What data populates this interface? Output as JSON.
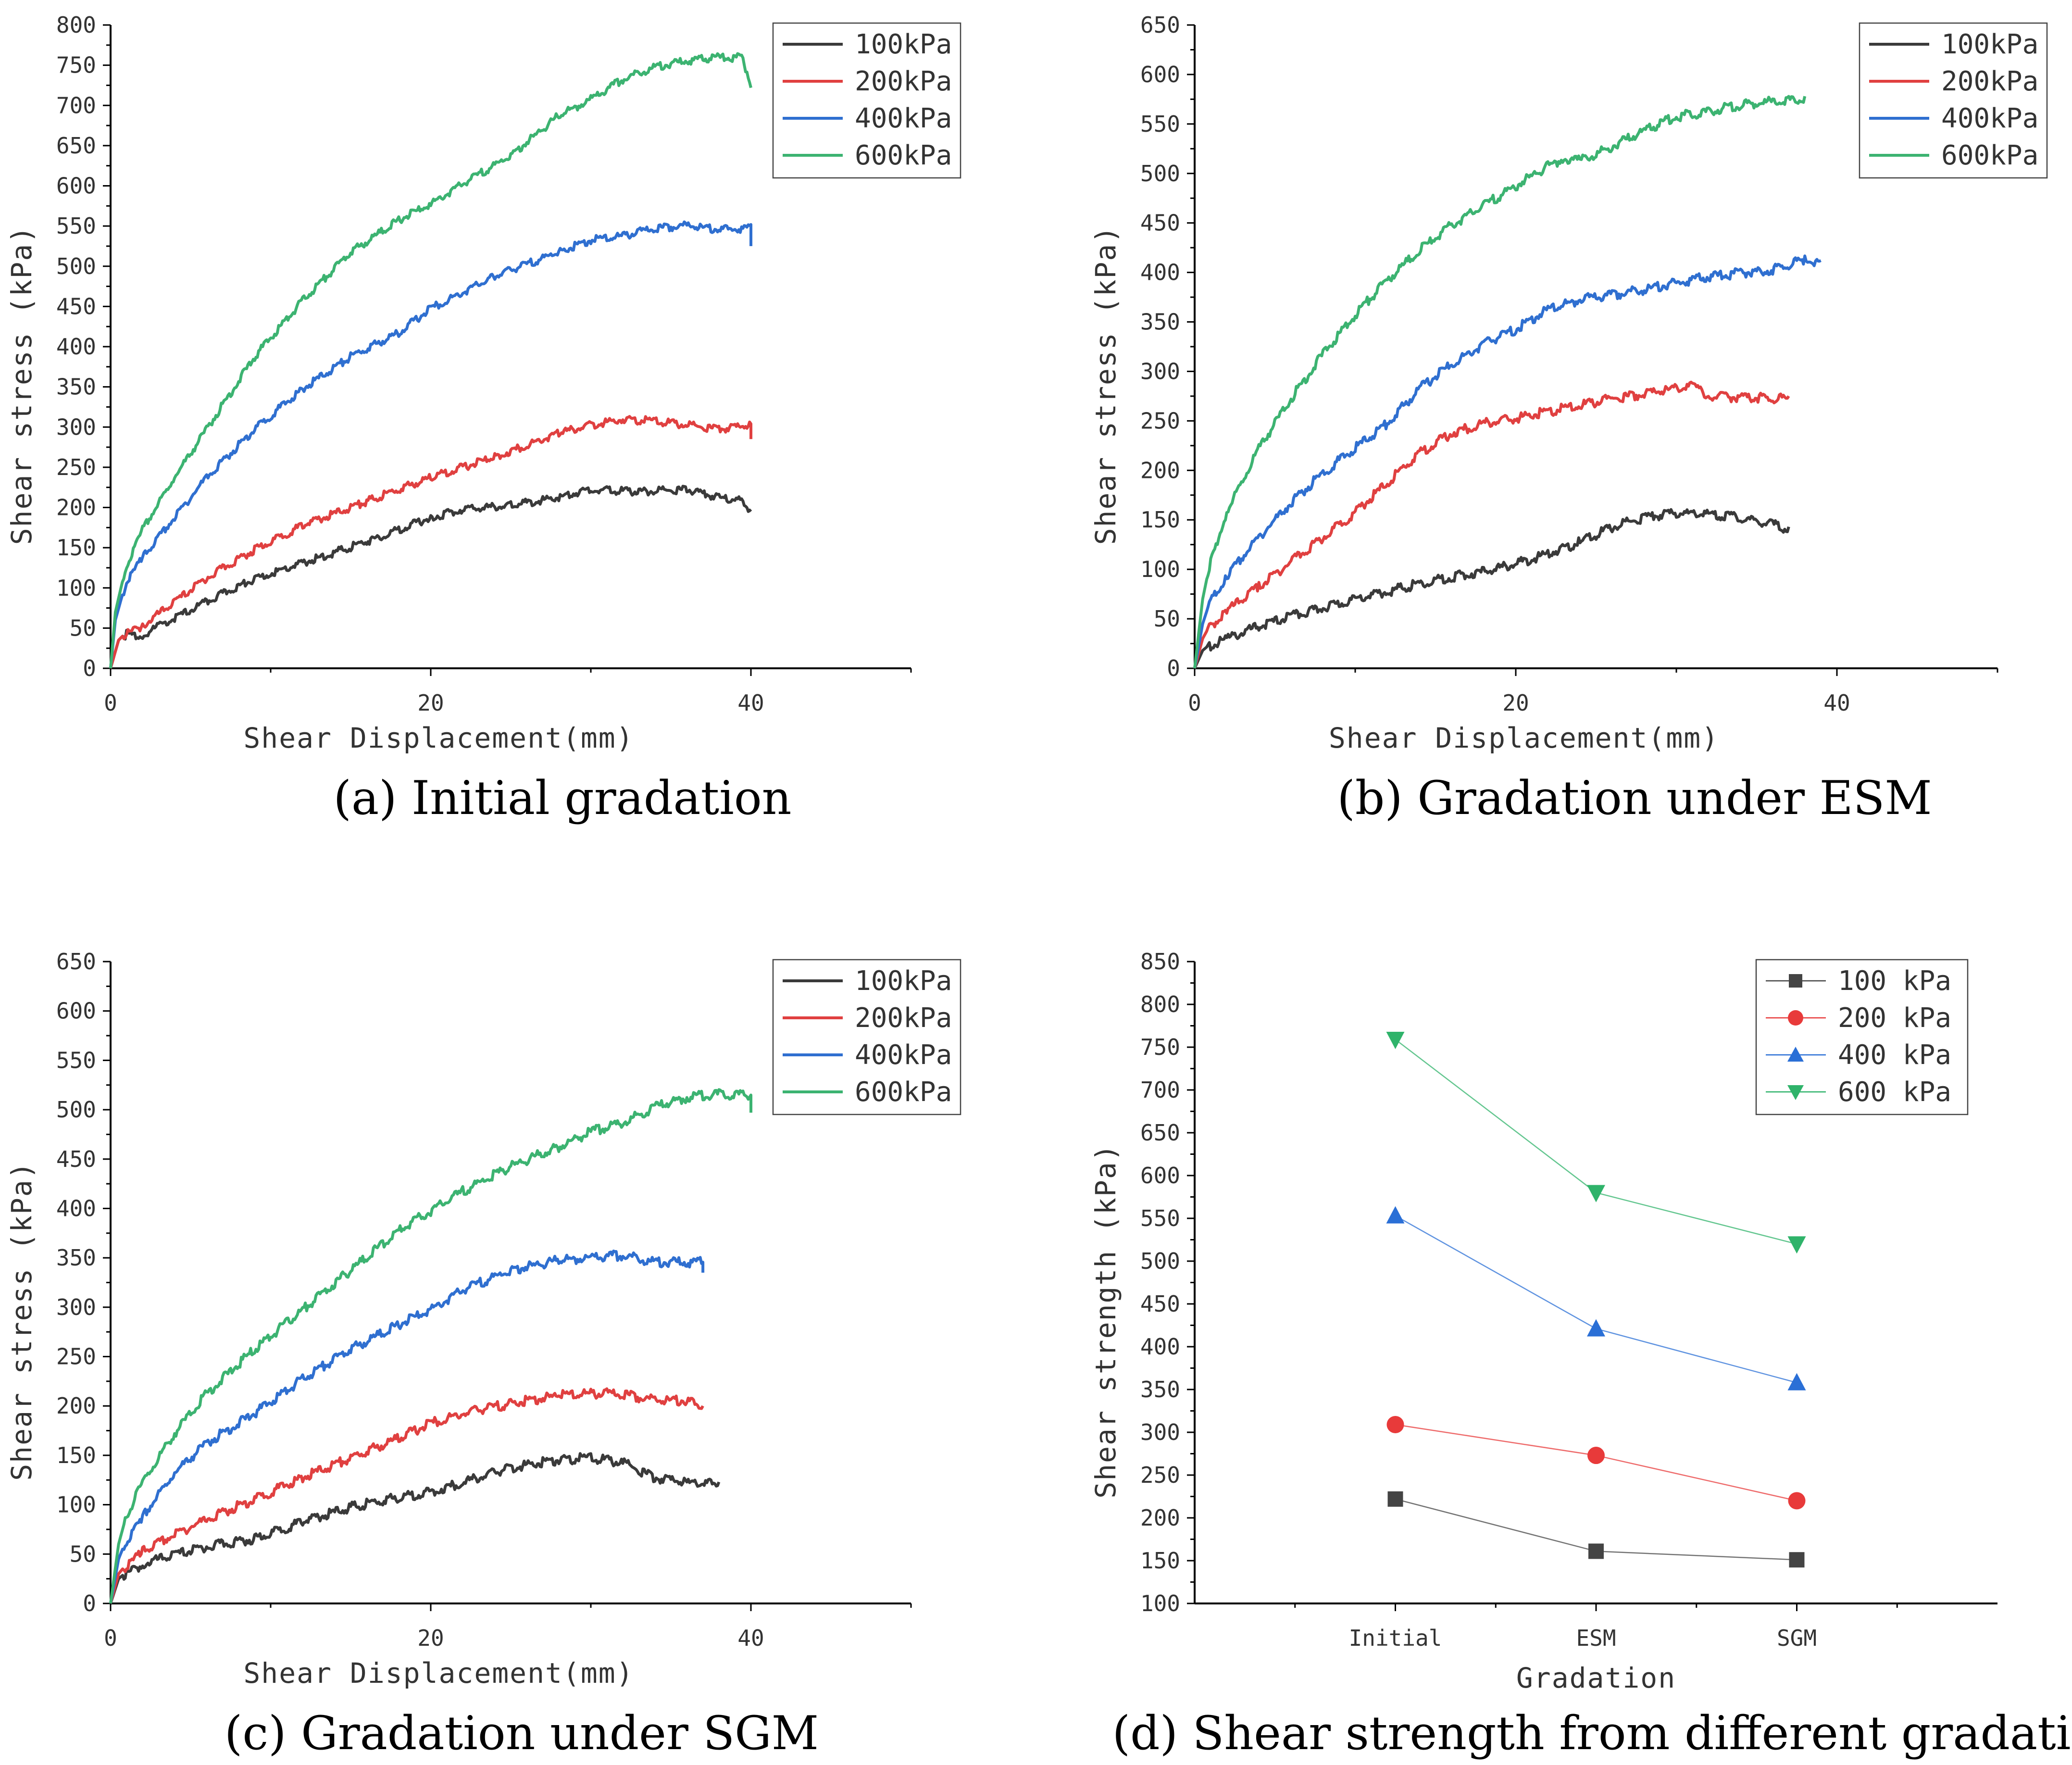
{
  "figure": {
    "captions": [
      "(a) Initial gradation",
      "(b) Gradation under ESM",
      "(c) Gradation under SGM",
      "(d) Shear strength from different gradations"
    ]
  },
  "chart_data": [
    {
      "id": "a",
      "type": "line",
      "title": "(a) Initial gradation",
      "xlabel": "Shear Displacement(mm)",
      "ylabel": "Shear stress (kPa)",
      "xlim": [
        0,
        50
      ],
      "ylim": [
        0,
        800
      ],
      "xticks": [
        0,
        20,
        40
      ],
      "yticks": [
        0,
        50,
        100,
        150,
        200,
        250,
        300,
        350,
        400,
        450,
        500,
        550,
        600,
        650,
        700,
        750,
        800
      ],
      "legend_position": "top-right",
      "series": [
        {
          "name": "100kPa",
          "color": "#3a3a3a",
          "x": [
            0,
            0.5,
            1,
            2,
            3,
            5,
            8,
            10,
            13,
            16,
            20,
            22,
            25,
            28,
            30,
            33,
            36,
            38,
            39.5,
            40
          ],
          "y": [
            0,
            35,
            45,
            42,
            55,
            75,
            105,
            120,
            140,
            160,
            190,
            200,
            205,
            215,
            225,
            222,
            225,
            215,
            212,
            195
          ]
        },
        {
          "name": "200kPa",
          "color": "#e04040",
          "x": [
            0,
            0.5,
            1,
            2,
            4,
            6,
            9,
            12,
            16,
            20,
            24,
            28,
            30,
            32,
            34,
            36,
            38,
            40,
            40
          ],
          "y": [
            0,
            35,
            45,
            55,
            85,
            115,
            150,
            180,
            210,
            240,
            265,
            295,
            305,
            312,
            310,
            305,
            300,
            305,
            285
          ]
        },
        {
          "name": "400kPa",
          "color": "#2f6fd0",
          "x": [
            0,
            0.3,
            1,
            2,
            4,
            6,
            9,
            12,
            15,
            18,
            20,
            24,
            28,
            30,
            32,
            34,
            36,
            38,
            40,
            40
          ],
          "y": [
            0,
            60,
            110,
            140,
            190,
            240,
            300,
            350,
            390,
            420,
            450,
            490,
            520,
            535,
            540,
            550,
            553,
            548,
            550,
            525
          ]
        },
        {
          "name": "600kPa",
          "color": "#3cb371",
          "x": [
            0,
            0.3,
            1,
            2,
            4,
            6,
            9,
            12,
            15,
            18,
            20,
            22,
            25,
            28,
            30,
            32,
            34,
            36,
            38,
            39.5,
            40
          ],
          "y": [
            0,
            70,
            130,
            175,
            240,
            300,
            390,
            460,
            520,
            560,
            580,
            605,
            640,
            690,
            710,
            735,
            750,
            758,
            762,
            762,
            722
          ]
        }
      ]
    },
    {
      "id": "b",
      "type": "line",
      "title": "(b) Gradation under ESM",
      "xlabel": "Shear Displacement(mm)",
      "ylabel": "Shear stress (kPa)",
      "xlim": [
        0,
        50
      ],
      "ylim": [
        0,
        650
      ],
      "xticks": [
        0,
        20,
        40
      ],
      "yticks": [
        0,
        50,
        100,
        150,
        200,
        250,
        300,
        350,
        400,
        450,
        500,
        550,
        600,
        650
      ],
      "legend_position": "top-right",
      "series": [
        {
          "name": "100kPa",
          "color": "#3a3a3a",
          "x": [
            0,
            0.5,
            1,
            2,
            4,
            6,
            8,
            10,
            12,
            14,
            16,
            18,
            20,
            22,
            24,
            26,
            28,
            30,
            32,
            34,
            36,
            37
          ],
          "y": [
            0,
            18,
            25,
            32,
            45,
            55,
            63,
            72,
            80,
            88,
            95,
            100,
            108,
            118,
            130,
            145,
            155,
            160,
            158,
            155,
            148,
            143
          ]
        },
        {
          "name": "200kPa",
          "color": "#e04040",
          "x": [
            0,
            0.5,
            1,
            2,
            4,
            6,
            8,
            10,
            12,
            14,
            16,
            18,
            20,
            22,
            24,
            26,
            28,
            30,
            31,
            32,
            34,
            37
          ],
          "y": [
            0,
            30,
            45,
            60,
            85,
            110,
            135,
            160,
            190,
            220,
            240,
            250,
            255,
            262,
            268,
            275,
            280,
            285,
            287,
            278,
            276,
            275
          ]
        },
        {
          "name": "400kPa",
          "color": "#2f6fd0",
          "x": [
            0,
            0.5,
            1,
            2,
            4,
            6,
            8,
            10,
            12,
            14,
            16,
            18,
            20,
            22,
            24,
            26,
            28,
            30,
            32,
            34,
            36,
            38,
            39
          ],
          "y": [
            0,
            45,
            70,
            95,
            135,
            170,
            200,
            225,
            250,
            285,
            310,
            330,
            345,
            365,
            375,
            380,
            385,
            392,
            398,
            402,
            405,
            416,
            412
          ]
        },
        {
          "name": "600kPa",
          "color": "#3cb371",
          "x": [
            0,
            0.5,
            1,
            2,
            4,
            6,
            8,
            10,
            12,
            14,
            16,
            18,
            20,
            22,
            23,
            24,
            26,
            28,
            30,
            32,
            34,
            36,
            38
          ],
          "y": [
            0,
            70,
            110,
            160,
            225,
            275,
            320,
            360,
            395,
            425,
            450,
            470,
            490,
            510,
            518,
            515,
            530,
            545,
            560,
            565,
            572,
            575,
            578
          ]
        }
      ]
    },
    {
      "id": "c",
      "type": "line",
      "title": "(c) Gradation under SGM",
      "xlabel": "Shear Displacement(mm)",
      "ylabel": "Shear stress (kPa)",
      "xlim": [
        0,
        50
      ],
      "ylim": [
        0,
        650
      ],
      "xticks": [
        0,
        20,
        40
      ],
      "yticks": [
        0,
        50,
        100,
        150,
        200,
        250,
        300,
        350,
        400,
        450,
        500,
        550,
        600,
        650
      ],
      "legend_position": "top-right",
      "series": [
        {
          "name": "100kPa",
          "color": "#3a3a3a",
          "x": [
            0,
            0.5,
            1,
            2,
            4,
            6,
            9,
            12,
            15,
            18,
            20,
            22,
            25,
            28,
            30,
            32,
            34,
            36,
            38
          ],
          "y": [
            0,
            25,
            32,
            42,
            52,
            60,
            68,
            85,
            100,
            110,
            115,
            125,
            140,
            148,
            150,
            145,
            130,
            125,
            123
          ]
        },
        {
          "name": "200kPa",
          "color": "#e04040",
          "x": [
            0,
            0.5,
            1,
            2,
            4,
            6,
            9,
            12,
            15,
            18,
            20,
            22,
            25,
            28,
            30,
            32,
            34,
            36,
            37
          ],
          "y": [
            0,
            30,
            40,
            55,
            72,
            88,
            108,
            130,
            150,
            170,
            185,
            195,
            205,
            213,
            215,
            215,
            208,
            208,
            200
          ]
        },
        {
          "name": "400kPa",
          "color": "#2f6fd0",
          "x": [
            0,
            0.5,
            1,
            2,
            4,
            6,
            9,
            12,
            15,
            18,
            20,
            22,
            25,
            28,
            30,
            32,
            34,
            36,
            37,
            37
          ],
          "y": [
            0,
            45,
            65,
            90,
            135,
            165,
            195,
            230,
            260,
            285,
            300,
            320,
            340,
            350,
            353,
            355,
            348,
            348,
            348,
            335
          ]
        },
        {
          "name": "600kPa",
          "color": "#3cb371",
          "x": [
            0,
            0.5,
            1,
            2,
            4,
            6,
            9,
            12,
            15,
            18,
            20,
            22,
            25,
            28,
            30,
            32,
            34,
            36,
            38,
            40,
            40
          ],
          "y": [
            0,
            60,
            90,
            125,
            175,
            215,
            260,
            300,
            340,
            380,
            400,
            420,
            445,
            465,
            480,
            490,
            505,
            515,
            518,
            518,
            497
          ]
        }
      ]
    },
    {
      "id": "d",
      "type": "line",
      "title": "(d) Shear strength from different gradations",
      "xlabel": "Gradation",
      "ylabel": "Shear strength (kPa)",
      "categories": [
        "Initial",
        "ESM",
        "SGM"
      ],
      "ylim": [
        100,
        850
      ],
      "yticks": [
        100,
        150,
        200,
        250,
        300,
        350,
        400,
        450,
        500,
        550,
        600,
        650,
        700,
        750,
        800,
        850
      ],
      "legend_position": "top-right",
      "series": [
        {
          "name": "100 kPa",
          "color": "#444444",
          "marker": "square",
          "values": [
            222,
            161,
            151
          ]
        },
        {
          "name": "200 kPa",
          "color": "#e83a3a",
          "marker": "circle",
          "values": [
            309,
            273,
            220
          ]
        },
        {
          "name": "400 kPa",
          "color": "#2a6fd6",
          "marker": "triangle-up",
          "values": [
            553,
            421,
            358
          ]
        },
        {
          "name": "600 kPa",
          "color": "#2fb36a",
          "marker": "triangle-down",
          "values": [
            759,
            580,
            520
          ]
        }
      ]
    }
  ]
}
